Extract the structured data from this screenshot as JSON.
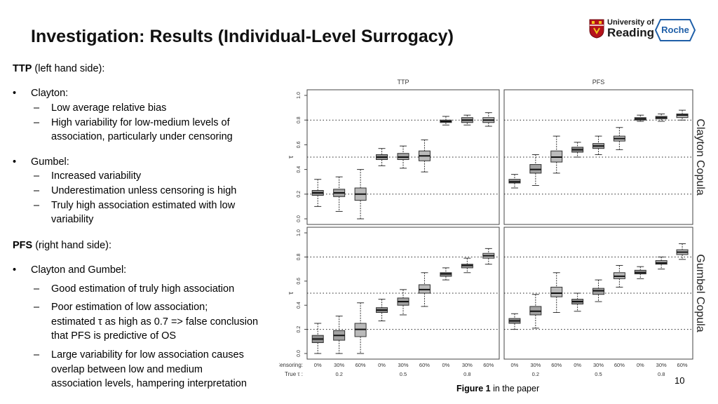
{
  "slide": {
    "title": "Investigation: Results (Individual-Level Surrogacy)",
    "page_number": "10",
    "caption_bold": "Figure 1",
    "caption_rest": " in the paper"
  },
  "logos": {
    "university_line1": "University of",
    "university_line2": "Reading",
    "roche": "Roche"
  },
  "left_panel": {
    "ttp_heading": "TTP",
    "ttp_heading_rest": " (left hand side):",
    "clayton": "Clayton:",
    "clayton_1": "Low average relative bias",
    "clayton_2a": "High variability for low-medium levels of",
    "clayton_2b": "association, particularly under censoring",
    "gumbel": "Gumbel:",
    "gumbel_1": "Increased variability",
    "gumbel_2": "Underestimation unless censoring is high",
    "gumbel_3a": "Truly high association estimated with low",
    "gumbel_3b": "variability",
    "pfs_heading": "PFS",
    "pfs_heading_rest": " (right hand side):",
    "both": "Clayton and Gumbel:",
    "both_1": "Good estimation of truly high association",
    "both_2a": "Poor estimation of low association;",
    "both_2b": "estimated τ as high as 0.7 => false conclusion",
    "both_2c": "that PFS is predictive of OS",
    "both_3a": "Large variability for low association causes",
    "both_3b": "overlap between low and medium",
    "both_3c": "association levels, hampering interpretation"
  },
  "chart_data": {
    "type": "boxplot",
    "panel_titles": [
      "TTP",
      "PFS"
    ],
    "row_labels": [
      "Clayton Copula",
      "Gumbel Copula"
    ],
    "ylabel": "τ",
    "ylim": [
      0,
      1
    ],
    "yticks": [
      "0.0",
      "0.2",
      "0.4",
      "0.6",
      "0.8",
      "1.0"
    ],
    "reference_lines": [
      0.2,
      0.5,
      0.8
    ],
    "censoring_label": "Censoring:",
    "true_tau_label": "True  τ :",
    "censoring_levels": [
      "0%",
      "30%",
      "60%"
    ],
    "true_tau": [
      "0.2",
      "0.5",
      "0.8"
    ],
    "panels": [
      {
        "row": "Clayton Copula",
        "endpoint": "TTP",
        "boxes": [
          {
            "tau": "0.2",
            "cens": "0%",
            "min": 0.1,
            "q1": 0.19,
            "median": 0.21,
            "q3": 0.23,
            "max": 0.32
          },
          {
            "tau": "0.2",
            "cens": "30%",
            "min": 0.06,
            "q1": 0.18,
            "median": 0.21,
            "q3": 0.24,
            "max": 0.34
          },
          {
            "tau": "0.2",
            "cens": "60%",
            "min": 0.0,
            "q1": 0.15,
            "median": 0.2,
            "q3": 0.25,
            "max": 0.4
          },
          {
            "tau": "0.5",
            "cens": "0%",
            "min": 0.43,
            "q1": 0.48,
            "median": 0.5,
            "q3": 0.52,
            "max": 0.57
          },
          {
            "tau": "0.5",
            "cens": "30%",
            "min": 0.41,
            "q1": 0.48,
            "median": 0.5,
            "q3": 0.53,
            "max": 0.59
          },
          {
            "tau": "0.5",
            "cens": "60%",
            "min": 0.38,
            "q1": 0.47,
            "median": 0.51,
            "q3": 0.55,
            "max": 0.64
          },
          {
            "tau": "0.8",
            "cens": "0%",
            "min": 0.76,
            "q1": 0.78,
            "median": 0.79,
            "q3": 0.8,
            "max": 0.83
          },
          {
            "tau": "0.8",
            "cens": "30%",
            "min": 0.76,
            "q1": 0.78,
            "median": 0.8,
            "q3": 0.82,
            "max": 0.84
          },
          {
            "tau": "0.8",
            "cens": "60%",
            "min": 0.75,
            "q1": 0.78,
            "median": 0.8,
            "q3": 0.82,
            "max": 0.86
          }
        ]
      },
      {
        "row": "Clayton Copula",
        "endpoint": "PFS",
        "boxes": [
          {
            "tau": "0.2",
            "cens": "0%",
            "min": 0.25,
            "q1": 0.29,
            "median": 0.3,
            "q3": 0.32,
            "max": 0.36
          },
          {
            "tau": "0.2",
            "cens": "30%",
            "min": 0.27,
            "q1": 0.37,
            "median": 0.4,
            "q3": 0.44,
            "max": 0.52
          },
          {
            "tau": "0.2",
            "cens": "60%",
            "min": 0.37,
            "q1": 0.46,
            "median": 0.5,
            "q3": 0.55,
            "max": 0.67
          },
          {
            "tau": "0.5",
            "cens": "0%",
            "min": 0.5,
            "q1": 0.54,
            "median": 0.56,
            "q3": 0.58,
            "max": 0.62
          },
          {
            "tau": "0.5",
            "cens": "30%",
            "min": 0.52,
            "q1": 0.57,
            "median": 0.59,
            "q3": 0.61,
            "max": 0.67
          },
          {
            "tau": "0.5",
            "cens": "60%",
            "min": 0.56,
            "q1": 0.63,
            "median": 0.65,
            "q3": 0.67,
            "max": 0.74
          },
          {
            "tau": "0.8",
            "cens": "0%",
            "min": 0.79,
            "q1": 0.8,
            "median": 0.81,
            "q3": 0.82,
            "max": 0.84
          },
          {
            "tau": "0.8",
            "cens": "30%",
            "min": 0.79,
            "q1": 0.81,
            "median": 0.82,
            "q3": 0.83,
            "max": 0.85
          },
          {
            "tau": "0.8",
            "cens": "60%",
            "min": 0.8,
            "q1": 0.82,
            "median": 0.84,
            "q3": 0.85,
            "max": 0.88
          }
        ]
      },
      {
        "row": "Gumbel Copula",
        "endpoint": "TTP",
        "boxes": [
          {
            "tau": "0.2",
            "cens": "0%",
            "min": 0.0,
            "q1": 0.09,
            "median": 0.12,
            "q3": 0.15,
            "max": 0.25
          },
          {
            "tau": "0.2",
            "cens": "30%",
            "min": 0.0,
            "q1": 0.11,
            "median": 0.15,
            "q3": 0.19,
            "max": 0.31
          },
          {
            "tau": "0.2",
            "cens": "60%",
            "min": 0.0,
            "q1": 0.14,
            "median": 0.2,
            "q3": 0.25,
            "max": 0.42
          },
          {
            "tau": "0.5",
            "cens": "0%",
            "min": 0.27,
            "q1": 0.34,
            "median": 0.36,
            "q3": 0.38,
            "max": 0.45
          },
          {
            "tau": "0.5",
            "cens": "30%",
            "min": 0.32,
            "q1": 0.4,
            "median": 0.43,
            "q3": 0.46,
            "max": 0.53
          },
          {
            "tau": "0.5",
            "cens": "60%",
            "min": 0.39,
            "q1": 0.5,
            "median": 0.53,
            "q3": 0.57,
            "max": 0.67
          },
          {
            "tau": "0.8",
            "cens": "0%",
            "min": 0.61,
            "q1": 0.64,
            "median": 0.66,
            "q3": 0.67,
            "max": 0.71
          },
          {
            "tau": "0.8",
            "cens": "30%",
            "min": 0.67,
            "q1": 0.71,
            "median": 0.73,
            "q3": 0.74,
            "max": 0.79
          },
          {
            "tau": "0.8",
            "cens": "60%",
            "min": 0.74,
            "q1": 0.79,
            "median": 0.81,
            "q3": 0.83,
            "max": 0.87
          }
        ]
      },
      {
        "row": "Gumbel Copula",
        "endpoint": "PFS",
        "boxes": [
          {
            "tau": "0.2",
            "cens": "0%",
            "min": 0.2,
            "q1": 0.25,
            "median": 0.27,
            "q3": 0.29,
            "max": 0.33
          },
          {
            "tau": "0.2",
            "cens": "30%",
            "min": 0.21,
            "q1": 0.32,
            "median": 0.35,
            "q3": 0.39,
            "max": 0.49
          },
          {
            "tau": "0.2",
            "cens": "60%",
            "min": 0.34,
            "q1": 0.47,
            "median": 0.5,
            "q3": 0.55,
            "max": 0.67
          },
          {
            "tau": "0.5",
            "cens": "0%",
            "min": 0.35,
            "q1": 0.41,
            "median": 0.43,
            "q3": 0.45,
            "max": 0.5
          },
          {
            "tau": "0.5",
            "cens": "30%",
            "min": 0.43,
            "q1": 0.49,
            "median": 0.52,
            "q3": 0.54,
            "max": 0.61
          },
          {
            "tau": "0.5",
            "cens": "60%",
            "min": 0.55,
            "q1": 0.62,
            "median": 0.64,
            "q3": 0.67,
            "max": 0.73
          },
          {
            "tau": "0.8",
            "cens": "0%",
            "min": 0.62,
            "q1": 0.66,
            "median": 0.67,
            "q3": 0.69,
            "max": 0.72
          },
          {
            "tau": "0.8",
            "cens": "30%",
            "min": 0.7,
            "q1": 0.74,
            "median": 0.75,
            "q3": 0.77,
            "max": 0.8
          },
          {
            "tau": "0.8",
            "cens": "60%",
            "min": 0.78,
            "q1": 0.82,
            "median": 0.84,
            "q3": 0.86,
            "max": 0.91
          }
        ]
      }
    ]
  }
}
